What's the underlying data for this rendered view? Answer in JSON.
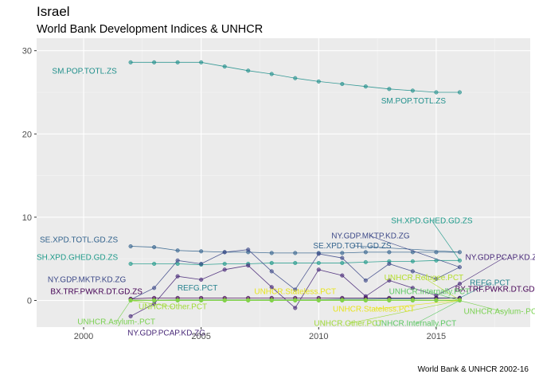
{
  "title": "Israel",
  "subtitle": "World Bank Development Indices & UNHCR",
  "caption": "World Bank & UNHCR 2002-16",
  "chart_data": {
    "type": "line",
    "xlim": [
      1998,
      2019
    ],
    "ylim": [
      -3.2,
      31.5
    ],
    "x_ticks": [
      2000,
      2005,
      2010,
      2015
    ],
    "y_ticks": [
      0,
      10,
      20,
      30
    ],
    "grid": true,
    "legend": "none",
    "x": [
      2002,
      2003,
      2004,
      2005,
      2006,
      2007,
      2008,
      2009,
      2010,
      2011,
      2012,
      2013,
      2014,
      2015,
      2016
    ],
    "series": [
      {
        "name": "SM.POP.TOTL.ZS",
        "color": "#21908C",
        "values": [
          28.6,
          28.6,
          28.6,
          28.6,
          28.1,
          27.6,
          27.2,
          26.7,
          26.3,
          26.0,
          25.7,
          25.4,
          25.2,
          25.0,
          25.0
        ],
        "labels": [
          {
            "x": 2002,
            "dx": -58,
            "dy": 14
          },
          {
            "x": 2016,
            "dx": -58,
            "dy": 14
          }
        ]
      },
      {
        "name": "SE.XPD.TOTL.GD.ZS",
        "color": "#33638D",
        "values": [
          6.5,
          6.4,
          6.0,
          5.9,
          5.8,
          5.8,
          5.7,
          5.7,
          5.7,
          5.7,
          5.8,
          5.8,
          5.8,
          5.8,
          5.8
        ],
        "labels": [
          {
            "x": 2002,
            "dx": -65,
            "dy": -5
          },
          {
            "x": 2016,
            "dx": -135,
            "dy": -5,
            "leader": true
          }
        ]
      },
      {
        "name": "SH.XPD.GHED.GD.ZS",
        "color": "#1F9A8A",
        "values": [
          4.4,
          4.4,
          4.4,
          4.3,
          4.4,
          4.4,
          4.5,
          4.5,
          4.5,
          4.5,
          4.6,
          4.7,
          4.7,
          4.8,
          4.8
        ],
        "labels": [
          {
            "x": 2002,
            "dx": -67,
            "dy": -5
          },
          {
            "x": 2016,
            "dx": -35,
            "dy": -47,
            "leader": true
          }
        ]
      },
      {
        "name": "NY.GDP.MKTP.KD.ZG",
        "color": "#3E4A89",
        "values": [
          0.1,
          1.5,
          4.8,
          4.4,
          5.8,
          6.1,
          3.5,
          1.3,
          5.6,
          5.1,
          2.4,
          4.4,
          3.5,
          2.6,
          4.0
        ],
        "labels": [
          {
            "x": 2002,
            "dx": -55,
            "dy": -22
          },
          {
            "x": 2016,
            "dx": -112,
            "dy": -36,
            "leader": true
          }
        ]
      },
      {
        "name": "NY.GDP.PCAP.KD.ZG",
        "color": "#482878",
        "values": [
          -1.9,
          -0.4,
          2.9,
          2.5,
          3.7,
          4.2,
          1.6,
          -0.9,
          3.7,
          3.0,
          0.5,
          2.4,
          1.5,
          0.6,
          2.0
        ],
        "labels": [
          {
            "x": 2002,
            "dx": 45,
            "dy": 24
          },
          {
            "x": 2016,
            "dx": 56,
            "dy": -30,
            "leader": true
          }
        ]
      },
      {
        "name": "REFG.PCT",
        "color": "#26828E",
        "values": [
          0.05,
          0.05,
          0.08,
          0.08,
          0.08,
          0.08,
          0.1,
          0.1,
          0.1,
          0.15,
          0.15,
          0.2,
          0.2,
          0.25,
          0.3
        ],
        "labels": [
          {
            "x": 2002,
            "dx": 84,
            "dy": -12
          },
          {
            "x": 2016,
            "dx": 38,
            "dy": -16,
            "leader": true
          }
        ]
      },
      {
        "name": "BX.TRF.PWKR.DT.GD.ZS",
        "color": "#440154",
        "values": [
          0.2,
          0.3,
          0.3,
          0.3,
          0.3,
          0.3,
          0.3,
          0.3,
          0.3,
          0.3,
          0.3,
          0.3,
          0.3,
          0.3,
          0.3
        ],
        "labels": [
          {
            "x": 2002,
            "dx": -43,
            "dy": -6
          },
          {
            "x": 2016,
            "dx": 52,
            "dy": -8
          }
        ]
      },
      {
        "name": "UNHCR.Refugee.PCT",
        "color": "#B4DE2C",
        "values": [
          0.02,
          0.02,
          0.03,
          0.03,
          0.04,
          0.05,
          0.05,
          0.05,
          0.05,
          0.05,
          0.05,
          0.05,
          0.05,
          0.05,
          0.05
        ],
        "labels": [
          {
            "x": 2016,
            "dx": -45,
            "dy": -25,
            "leader": true
          }
        ]
      },
      {
        "name": "UNHCR.Stateless.PCT",
        "color": "#E7E419",
        "values": [
          0.02,
          0.02,
          0.02,
          0.02,
          0.02,
          0.02,
          0.02,
          0.02,
          0.02,
          0.02,
          0.02,
          0.02,
          0.02,
          0.02,
          0.02
        ],
        "labels": [
          {
            "x": 2009,
            "dx": 0,
            "dy": -8
          },
          {
            "x": 2016,
            "dx": -108,
            "dy": 14,
            "leader": true
          }
        ]
      },
      {
        "name": "UNHCR.Internally.PCT",
        "color": "#5DC863",
        "values": [
          0.0,
          0.0,
          0.0,
          0.0,
          0.0,
          0.0,
          0.0,
          0.0,
          0.0,
          0.0,
          0.0,
          0.0,
          0.0,
          0.0,
          0.0
        ],
        "labels": [
          {
            "x": 2016,
            "dx": -38,
            "dy": -8,
            "leader": true
          },
          {
            "x": 2016,
            "dx": -55,
            "dy": 32,
            "leader": true
          }
        ]
      },
      {
        "name": "UNHCR.Other.PCT",
        "color": "#A0DA39",
        "values": [
          0.0,
          0.0,
          0.0,
          0.0,
          0.0,
          0.0,
          0.0,
          0.0,
          0.0,
          0.0,
          0.0,
          0.0,
          0.0,
          0.0,
          0.0
        ],
        "labels": [
          {
            "x": 2002,
            "dx": 53,
            "dy": 11,
            "leader": true
          },
          {
            "x": 2016,
            "dx": -140,
            "dy": 32,
            "leader": true
          }
        ]
      },
      {
        "name": "UNHCR.Asylum-.PCT",
        "color": "#7AD151",
        "values": [
          0.0,
          0.0,
          0.0,
          0.0,
          0.0,
          0.0,
          0.0,
          0.0,
          0.0,
          0.0,
          0.0,
          0.0,
          0.0,
          0.0,
          0.0
        ],
        "labels": [
          {
            "x": 2002,
            "dx": -18,
            "dy": 30,
            "leader": true
          },
          {
            "x": 2016,
            "dx": 54,
            "dy": 17,
            "leader": true
          }
        ]
      }
    ]
  }
}
